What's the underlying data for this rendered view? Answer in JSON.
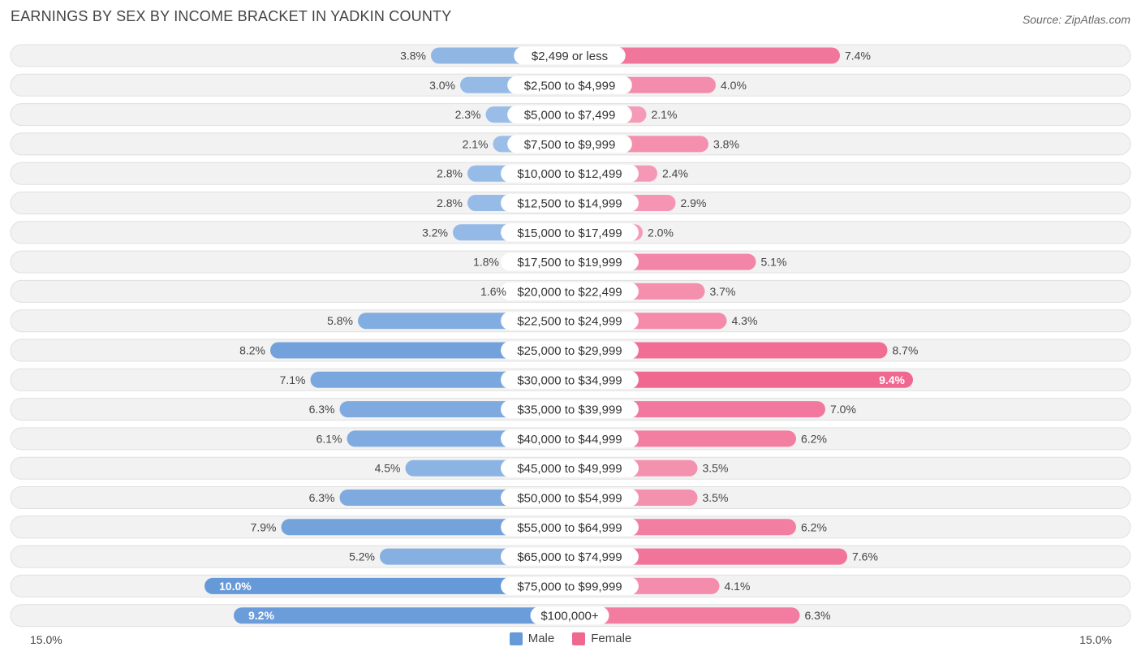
{
  "header": {
    "title": "EARNINGS BY SEX BY INCOME BRACKET IN YADKIN COUNTY",
    "source": "Source: ZipAtlas.com"
  },
  "axis": {
    "left_label": "15.0%",
    "right_label": "15.0%"
  },
  "legend": {
    "male_label": "Male",
    "female_label": "Female"
  },
  "colors": {
    "male_light": "#a9c8ec",
    "male_dark": "#6699d8",
    "female_light": "#f7a9c2",
    "female_dark": "#f06890",
    "row_bg": "#f2f2f2",
    "row_border": "#e0e0e0"
  },
  "chart_data": {
    "type": "bar",
    "orientation": "horizontal-diverging",
    "title": "EARNINGS BY SEX BY INCOME BRACKET IN YADKIN COUNTY",
    "xlim": [
      -15.0,
      15.0
    ],
    "categories": [
      "$2,499 or less",
      "$2,500 to $4,999",
      "$5,000 to $7,499",
      "$7,500 to $9,999",
      "$10,000 to $12,499",
      "$12,500 to $14,999",
      "$15,000 to $17,499",
      "$17,500 to $19,999",
      "$20,000 to $22,499",
      "$22,500 to $24,999",
      "$25,000 to $29,999",
      "$30,000 to $34,999",
      "$35,000 to $39,999",
      "$40,000 to $44,999",
      "$45,000 to $49,999",
      "$50,000 to $54,999",
      "$55,000 to $64,999",
      "$65,000 to $74,999",
      "$75,000 to $99,999",
      "$100,000+"
    ],
    "series": [
      {
        "name": "Male",
        "values": [
          3.8,
          3.0,
          2.3,
          2.1,
          2.8,
          2.8,
          3.2,
          1.8,
          1.6,
          5.8,
          8.2,
          7.1,
          6.3,
          6.1,
          4.5,
          6.3,
          7.9,
          5.2,
          10.0,
          9.2
        ],
        "labels": [
          "3.8%",
          "3.0%",
          "2.3%",
          "2.1%",
          "2.8%",
          "2.8%",
          "3.2%",
          "1.8%",
          "1.6%",
          "5.8%",
          "8.2%",
          "7.1%",
          "6.3%",
          "6.1%",
          "4.5%",
          "6.3%",
          "7.9%",
          "5.2%",
          "10.0%",
          "9.2%"
        ]
      },
      {
        "name": "Female",
        "values": [
          7.4,
          4.0,
          2.1,
          3.8,
          2.4,
          2.9,
          2.0,
          5.1,
          3.7,
          4.3,
          8.7,
          9.4,
          7.0,
          6.2,
          3.5,
          3.5,
          6.2,
          7.6,
          4.1,
          6.3
        ],
        "labels": [
          "7.4%",
          "4.0%",
          "2.1%",
          "3.8%",
          "2.4%",
          "2.9%",
          "2.0%",
          "5.1%",
          "3.7%",
          "4.3%",
          "8.7%",
          "9.4%",
          "7.0%",
          "6.2%",
          "3.5%",
          "3.5%",
          "6.2%",
          "7.6%",
          "4.1%",
          "6.3%"
        ]
      }
    ]
  }
}
